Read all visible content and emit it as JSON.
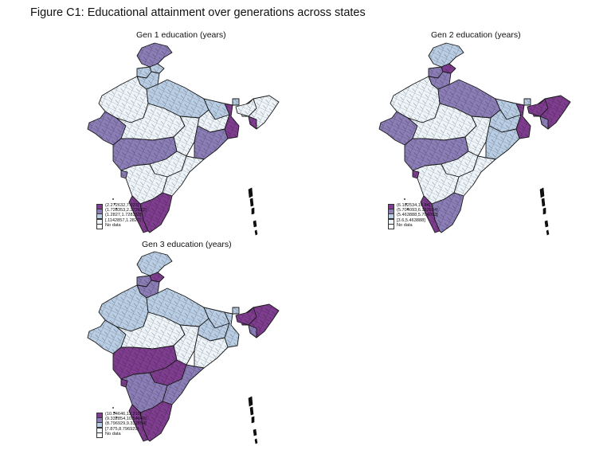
{
  "figure": {
    "title": "Figure C1: Educational attainment over generations across states"
  },
  "colors": {
    "q4": "#7e3d8e",
    "q3": "#8b7db6",
    "q2": "#b9cde4",
    "q1": "#eef5fa",
    "nodata": "#ffffff",
    "border": "#1a1a1a"
  },
  "panels": [
    {
      "title": "Gen 1 education (years)",
      "legend": [
        {
          "label": "(2.272632,7.923]",
          "color_key": "q4"
        },
        {
          "label": "(1.728353,2.272632]",
          "color_key": "q3"
        },
        {
          "label": "(1.2827,1.728353]",
          "color_key": "q2"
        },
        {
          "label": "[.1142857,1.2827]",
          "color_key": "q1"
        },
        {
          "label": "No data",
          "color_key": "nodata"
        }
      ],
      "regions": {
        "kashmir": "q3",
        "himachal": "q2",
        "punjab": "q2",
        "haryana": "q2",
        "rajasthan": "q1",
        "gujarat": "q3",
        "up": "q2",
        "mp": "q1",
        "bihar": "q2",
        "jharkhand": "q1",
        "wb": "q4",
        "odisha": "q3",
        "chhattisgarh": "q1",
        "maharashtra": "q3",
        "telangana": "q1",
        "andhra": "q1",
        "karnataka": "q1",
        "goa": "q3",
        "tamilnadu": "q4",
        "kerala": "q4",
        "northeast": "q1",
        "assam": "q1",
        "tripura": "q4",
        "sikkim": "q2"
      }
    },
    {
      "title": "Gen 2 education (years)",
      "legend": [
        {
          "label": "(6.182534,10.64]",
          "color_key": "q4"
        },
        {
          "label": "(5.704093,6.182534]",
          "color_key": "q3"
        },
        {
          "label": "(5.463888,5.704093]",
          "color_key": "q2"
        },
        {
          "label": "[3.6,5.463888]",
          "color_key": "q1"
        },
        {
          "label": "No data",
          "color_key": "nodata"
        }
      ],
      "regions": {
        "kashmir": "q2",
        "himachal": "q4",
        "punjab": "q3",
        "haryana": "q3",
        "rajasthan": "q1",
        "gujarat": "q3",
        "up": "q3",
        "mp": "q1",
        "bihar": "q2",
        "jharkhand": "q2",
        "wb": "q4",
        "odisha": "q2",
        "chhattisgarh": "q1",
        "maharashtra": "q3",
        "telangana": "q1",
        "andhra": "q1",
        "karnataka": "q1",
        "goa": "q4",
        "tamilnadu": "q3",
        "kerala": "q4",
        "northeast": "q4",
        "assam": "q4",
        "tripura": "q3",
        "sikkim": "q2"
      }
    },
    {
      "title": "Gen 3 education (years)",
      "legend": [
        {
          "label": "(10.54646,13.215]",
          "color_key": "q4"
        },
        {
          "label": "(9.332854,10.54646]",
          "color_key": "q3"
        },
        {
          "label": "(8.796929,9.332854]",
          "color_key": "q2"
        },
        {
          "label": "[7.875,8.796929]",
          "color_key": "q1"
        },
        {
          "label": "No data",
          "color_key": "nodata"
        }
      ],
      "regions": {
        "kashmir": "q2",
        "himachal": "q4",
        "punjab": "q3",
        "haryana": "q3",
        "rajasthan": "q2",
        "gujarat": "q2",
        "up": "q2",
        "mp": "q1",
        "bihar": "q2",
        "jharkhand": "q2",
        "wb": "q2",
        "odisha": "q1",
        "chhattisgarh": "q1",
        "maharashtra": "q4",
        "telangana": "q4",
        "andhra": "q3",
        "karnataka": "q3",
        "goa": "q4",
        "tamilnadu": "q4",
        "kerala": "q4",
        "northeast": "q4",
        "assam": "q4",
        "tripura": "q3",
        "sikkim": "q2"
      }
    }
  ]
}
